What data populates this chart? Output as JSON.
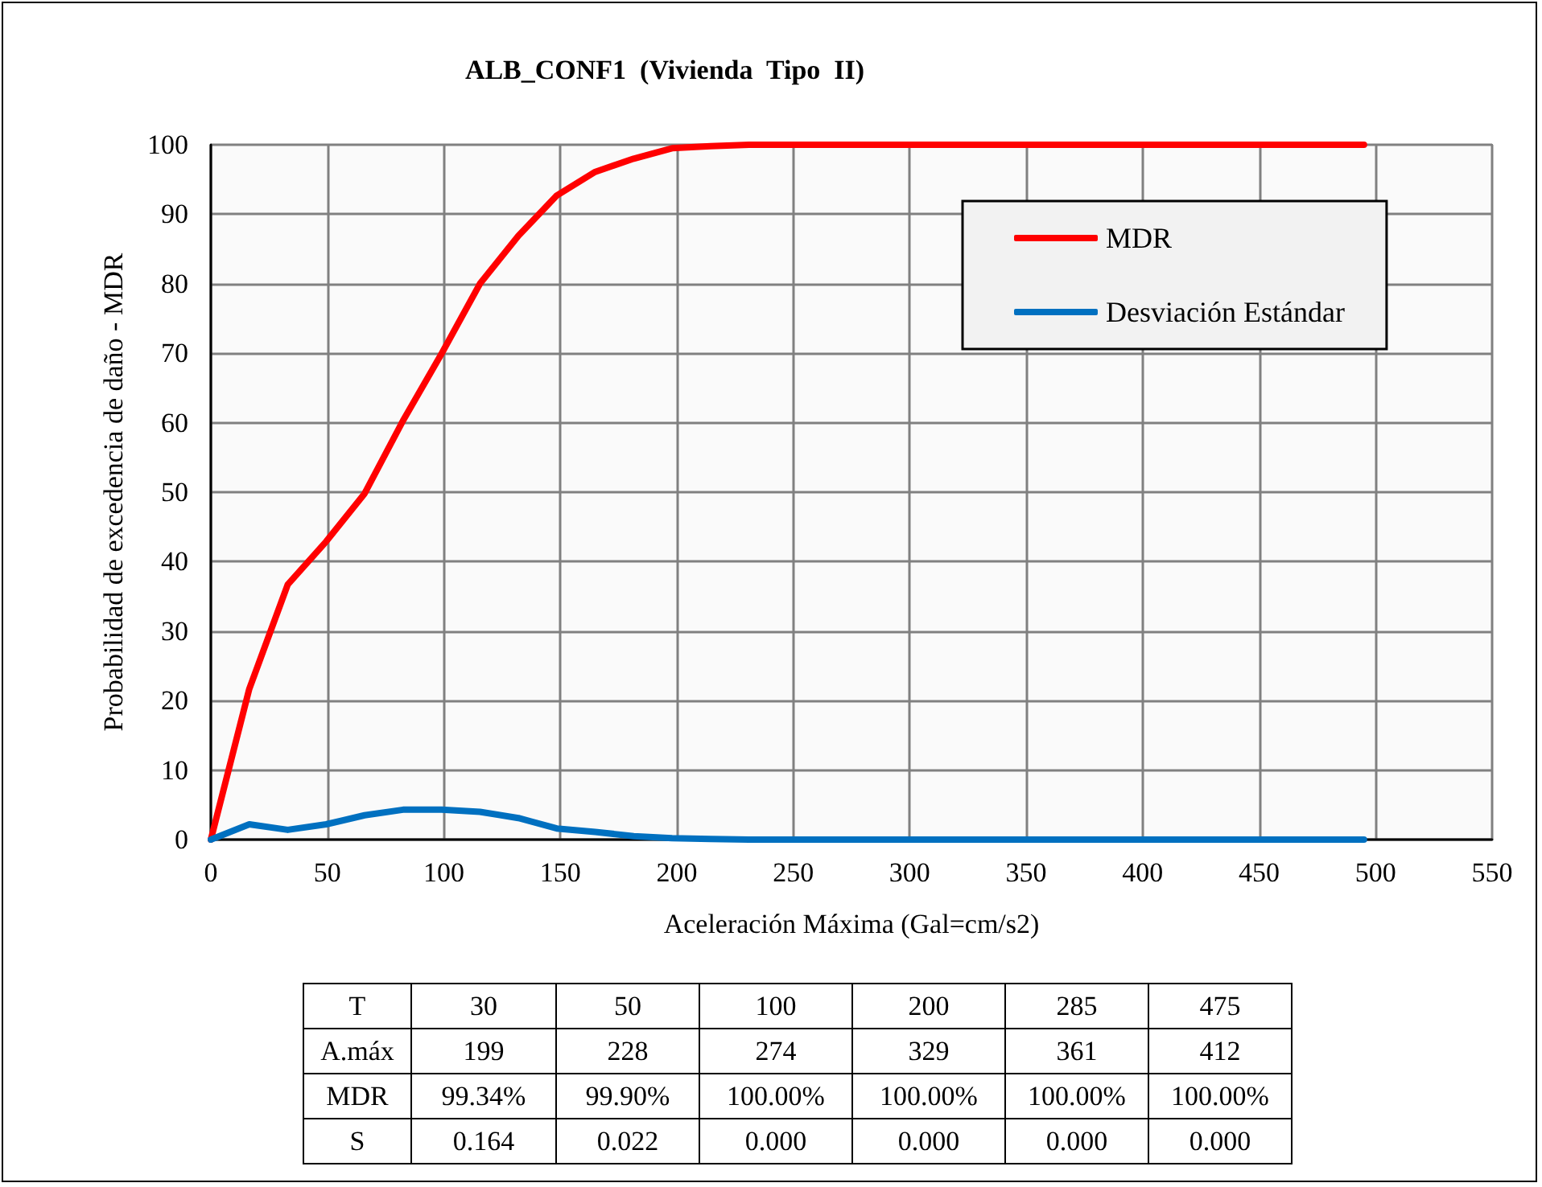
{
  "chart_data": [
    {
      "type": "line",
      "title": "ALB_CONF1  (Vivienda  Tipo  II)",
      "xlabel": "Aceleración Máxima (Gal=cm/s2)",
      "ylabel": "Probabilidad de excedencia de daño - MDR",
      "x": [
        0,
        16.5,
        33,
        49.5,
        66,
        82.5,
        99,
        115.5,
        132,
        148.5,
        165,
        181.5,
        198,
        214.5,
        231,
        247.5,
        264,
        280.5,
        297,
        313.5,
        330,
        346.5,
        363,
        379.5,
        396,
        412.5,
        429,
        445.5,
        462,
        478.5,
        495
      ],
      "series": [
        {
          "name": "MDR",
          "color": "#ff0000",
          "values": [
            0,
            21.7,
            36.7,
            42.9,
            49.8,
            60.3,
            69.9,
            80,
            86.9,
            92.7,
            96.1,
            98,
            99.5,
            99.8,
            100,
            100,
            100,
            100,
            100,
            100,
            100,
            100,
            100,
            100,
            100,
            100,
            100,
            100,
            100,
            100,
            100
          ]
        },
        {
          "name": "Desviación Estándar",
          "color": "#0070c0",
          "values": [
            0,
            2.2,
            1.4,
            2.2,
            3.5,
            4.3,
            4.3,
            4,
            3.1,
            1.6,
            1.1,
            0.5,
            0.2,
            0.1,
            0,
            0,
            0,
            0,
            0,
            0,
            0,
            0,
            0,
            0,
            0,
            0,
            0,
            0,
            0,
            0,
            0
          ]
        }
      ],
      "xlim": [
        0,
        550
      ],
      "xticks": [
        0,
        50,
        100,
        150,
        200,
        250,
        300,
        350,
        400,
        450,
        500,
        550
      ],
      "ylim": [
        0,
        100
      ],
      "yticks": [
        0,
        10,
        20,
        30,
        40,
        50,
        60,
        70,
        80,
        90,
        100
      ],
      "grid": true,
      "legend": "top right",
      "marker": "none",
      "line_style": "solid"
    },
    {
      "type": "other",
      "annotations": [
        "T",
        "30",
        "50",
        "100",
        "200",
        "285",
        "475",
        "A.máx",
        "199",
        "228",
        "274",
        "329",
        "361",
        "412",
        "MDR",
        "99.34%",
        "99.90%",
        "100.00%",
        "100.00%",
        "100.00%",
        "100.00%",
        "S",
        "0.164",
        "0.022",
        "0.000",
        "0.000",
        "0.000",
        "0.000"
      ]
    }
  ]
}
